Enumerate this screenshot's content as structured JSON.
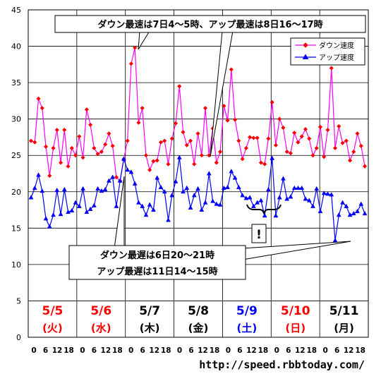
{
  "chart_data": {
    "type": "line",
    "y_ticks": [
      "0",
      "5",
      "10",
      "15",
      "20",
      "25",
      "30",
      "35",
      "40",
      "45"
    ],
    "ylim": [
      0,
      45
    ],
    "x_hour_ticks": [
      "0",
      "6",
      "12",
      "18"
    ],
    "grid": true,
    "legend_placement": "top-right",
    "days": [
      {
        "date": "5/5",
        "dow": "(火)",
        "color": "#ff0000"
      },
      {
        "date": "5/6",
        "dow": "(水)",
        "color": "#ff0000"
      },
      {
        "date": "5/7",
        "dow": "(木)",
        "color": "#000000"
      },
      {
        "date": "5/8",
        "dow": "(金)",
        "color": "#000000"
      },
      {
        "date": "5/9",
        "dow": "(土)",
        "color": "#0000ff"
      },
      {
        "date": "5/10",
        "dow": "(日)",
        "color": "#ff0000"
      },
      {
        "date": "5/11",
        "dow": "(月)",
        "color": "#000000"
      }
    ],
    "series": [
      {
        "name": "ダウン速度",
        "color": "#ff00ff",
        "marker": "diamond",
        "values": [
          27.0,
          26.8,
          32.8,
          31.5,
          26.2,
          22.2,
          26.0,
          28.5,
          24.0,
          28.5,
          23.5,
          26.0,
          25.0,
          27.6,
          24.7,
          31.3,
          29.2,
          26.0,
          25.2,
          25.5,
          26.5,
          28.0,
          26.3,
          22.0,
          21.5,
          24.5,
          27.0,
          37.6,
          39.8,
          29.5,
          31.5,
          25.0,
          23.0,
          24.2,
          24.3,
          26.8,
          27.0,
          23.8,
          27.3,
          29.4,
          34.5,
          28.2,
          26.4,
          27.0,
          23.8,
          28.0,
          25.0,
          31.5,
          25.0,
          28.7,
          24.0,
          25.5,
          31.8,
          29.8,
          36.8,
          29.9,
          27.0,
          24.5,
          26.0,
          27.5,
          27.4,
          27.4,
          24.0,
          23.8,
          27.3,
          32.3,
          26.4,
          30.0,
          28.8,
          25.5,
          25.3,
          28.1,
          26.8,
          27.6,
          28.6,
          27.3,
          25.0,
          26.0,
          28.9,
          24.8,
          28.5,
          37.0,
          26.0,
          29.0,
          26.7,
          27.0,
          24.3,
          25.5,
          28.0,
          26.3,
          23.5
        ]
      },
      {
        "name": "アップ速度",
        "color": "#0000ff",
        "marker": "triangle",
        "values": [
          19.2,
          20.5,
          22.3,
          20.1,
          16.3,
          15.2,
          16.8,
          20.2,
          16.9,
          20.3,
          17.2,
          17.4,
          18.5,
          18.0,
          20.4,
          17.2,
          17.6,
          18.1,
          20.4,
          20.1,
          20.3,
          21.5,
          22.0,
          18.0,
          21.5,
          24.5,
          23.0,
          22.7,
          21.1,
          18.5,
          18.0,
          16.8,
          18.2,
          17.5,
          21.9,
          20.6,
          20.0,
          16.1,
          19.5,
          21.4,
          24.7,
          20.0,
          20.5,
          17.8,
          19.5,
          20.4,
          17.5,
          18.5,
          22.5,
          18.7,
          18.3,
          18.2,
          20.5,
          20.6,
          22.8,
          21.9,
          20.6,
          19.5,
          19.1,
          19.2,
          18.0,
          18.5,
          18.8,
          16.7,
          20.3,
          24.6,
          16.7,
          19.2,
          21.8,
          19.0,
          19.3,
          20.5,
          20.5,
          20.5,
          19.0,
          18.8,
          18.0,
          20.4,
          17.3,
          19.8,
          19.7,
          19.6,
          13.3,
          16.8,
          18.5,
          18.0,
          16.8,
          17.0,
          17.3,
          18.3,
          17.0
        ]
      }
    ],
    "annotations": {
      "top": "ダウン最速は7日4〜5時、アップ最速は8日16〜17時",
      "bottom_line1": "ダウン最遅は6日20〜21時",
      "bottom_line2": "アップ最遅は11日14〜15時",
      "exclaim": "!"
    },
    "source": "http://speed.rbbtoday.com/"
  }
}
